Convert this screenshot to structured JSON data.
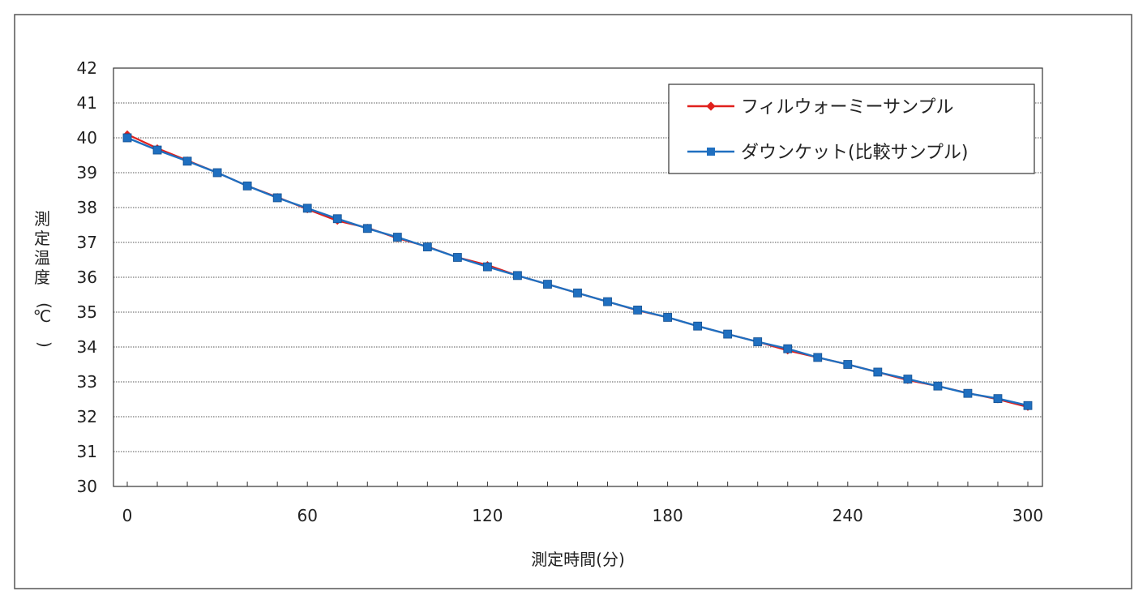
{
  "chart_data": {
    "type": "line",
    "xlabel": "測定時間(分)",
    "ylabel": "測定温度(℃)",
    "xlim": [
      0,
      300
    ],
    "ylim": [
      30,
      42
    ],
    "x_ticks": [
      0,
      60,
      120,
      180,
      240,
      300
    ],
    "y_ticks": [
      30,
      31,
      32,
      33,
      34,
      35,
      36,
      37,
      38,
      39,
      40,
      41,
      42
    ],
    "x_minor_step": 10,
    "grid": "horizontal",
    "legend_position": "top-right",
    "x": [
      0,
      10,
      20,
      30,
      40,
      50,
      60,
      70,
      80,
      90,
      100,
      110,
      120,
      130,
      140,
      150,
      160,
      170,
      180,
      190,
      200,
      210,
      220,
      230,
      240,
      250,
      260,
      270,
      280,
      290,
      300
    ],
    "series": [
      {
        "name": "フィルウォーミーサンプル",
        "color": "#e0201c",
        "marker": "diamond",
        "values": [
          40.1,
          39.7,
          39.35,
          39.0,
          38.62,
          38.3,
          37.95,
          37.62,
          37.42,
          37.12,
          36.88,
          36.57,
          36.35,
          36.05,
          35.8,
          35.55,
          35.3,
          35.05,
          34.85,
          34.6,
          34.37,
          34.15,
          33.9,
          33.7,
          33.5,
          33.28,
          33.05,
          32.88,
          32.68,
          32.5,
          32.28
        ]
      },
      {
        "name": "ダウンケット(比較サンプル)",
        "color": "#1f6fc0",
        "marker": "square",
        "values": [
          40.0,
          39.65,
          39.33,
          39.0,
          38.62,
          38.28,
          37.98,
          37.68,
          37.4,
          37.15,
          36.87,
          36.57,
          36.3,
          36.05,
          35.8,
          35.55,
          35.3,
          35.06,
          34.85,
          34.6,
          34.37,
          34.15,
          33.95,
          33.7,
          33.5,
          33.28,
          33.08,
          32.88,
          32.67,
          32.52,
          32.32
        ]
      }
    ]
  }
}
